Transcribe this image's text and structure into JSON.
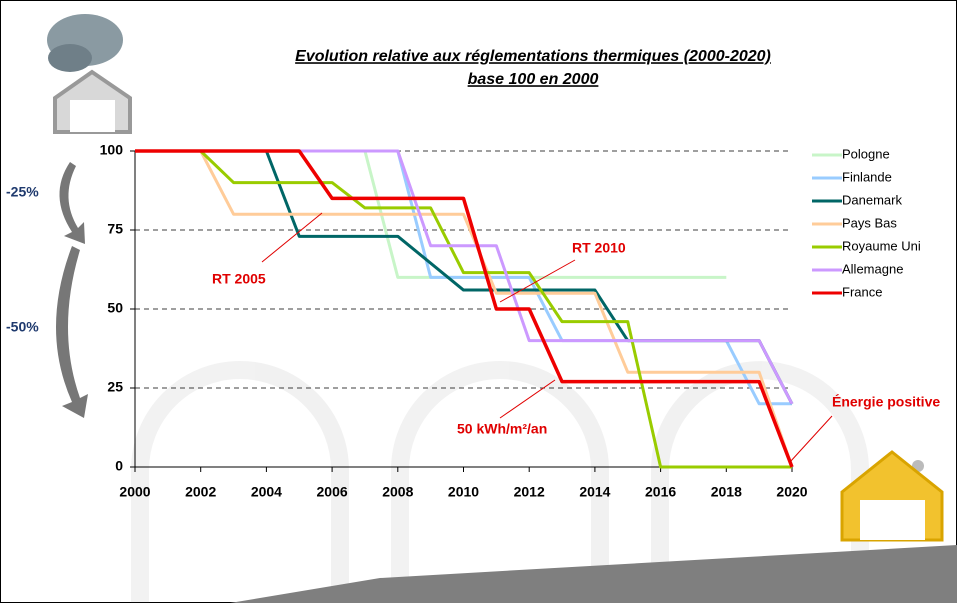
{
  "chart_data": {
    "type": "line",
    "title": "Evolution relative aux réglementations thermiques (2000-2020)",
    "subtitle": "base 100 en 2000",
    "xlim": [
      2000,
      2020
    ],
    "ylim": [
      0,
      100
    ],
    "xticks": [
      2000,
      2002,
      2004,
      2006,
      2008,
      2010,
      2012,
      2014,
      2016,
      2018,
      2020
    ],
    "yticks": [
      0,
      25,
      50,
      75,
      100
    ],
    "grid": true,
    "legend": "right",
    "annotations": [
      "RT 2005",
      "RT 2010",
      "50 kWh/m²/an",
      "Énergie positive",
      "-25%",
      "-50%"
    ],
    "series": [
      {
        "name": "Pologne",
        "color": "#c8f5c8",
        "x": [
          2000,
          2007,
          2008,
          2018
        ],
        "values": [
          100,
          100,
          60,
          60
        ]
      },
      {
        "name": "Finlande",
        "color": "#99ccff",
        "x": [
          2000,
          2008,
          2009,
          2012,
          2013,
          2018,
          2019,
          2020
        ],
        "values": [
          100,
          100,
          60,
          60,
          40,
          40,
          20,
          20
        ]
      },
      {
        "name": "Danemark",
        "color": "#006666",
        "x": [
          2000,
          2004,
          2005,
          2008,
          2010,
          2014,
          2015,
          2019,
          2020
        ],
        "values": [
          100,
          100,
          73,
          73,
          56,
          56,
          40,
          40,
          20
        ]
      },
      {
        "name": "Pays Bas",
        "color": "#ffcc99",
        "x": [
          2000,
          2002,
          2003,
          2010,
          2011,
          2014,
          2015,
          2019,
          2020
        ],
        "values": [
          100,
          100,
          80,
          80,
          55,
          55,
          30,
          30,
          0
        ]
      },
      {
        "name": "Royaume Uni",
        "color": "#99cc00",
        "x": [
          2000,
          2002,
          2003,
          2006,
          2007,
          2009,
          2010,
          2012,
          2013,
          2015,
          2016,
          2020
        ],
        "values": [
          100,
          100,
          90,
          90,
          82,
          82,
          61.5,
          61.5,
          46,
          46,
          0,
          0
        ]
      },
      {
        "name": "Allemagne",
        "color": "#cc99ff",
        "x": [
          2000,
          2008,
          2009,
          2011,
          2012,
          2019,
          2020
        ],
        "values": [
          100,
          100,
          70,
          70,
          40,
          40,
          20
        ]
      },
      {
        "name": "France",
        "color": "#ee0000",
        "x": [
          2000,
          2005,
          2006,
          2010,
          2011,
          2012,
          2013,
          2019,
          2020
        ],
        "values": [
          100,
          100,
          85,
          85,
          50,
          50,
          27,
          27,
          0
        ]
      }
    ]
  }
}
